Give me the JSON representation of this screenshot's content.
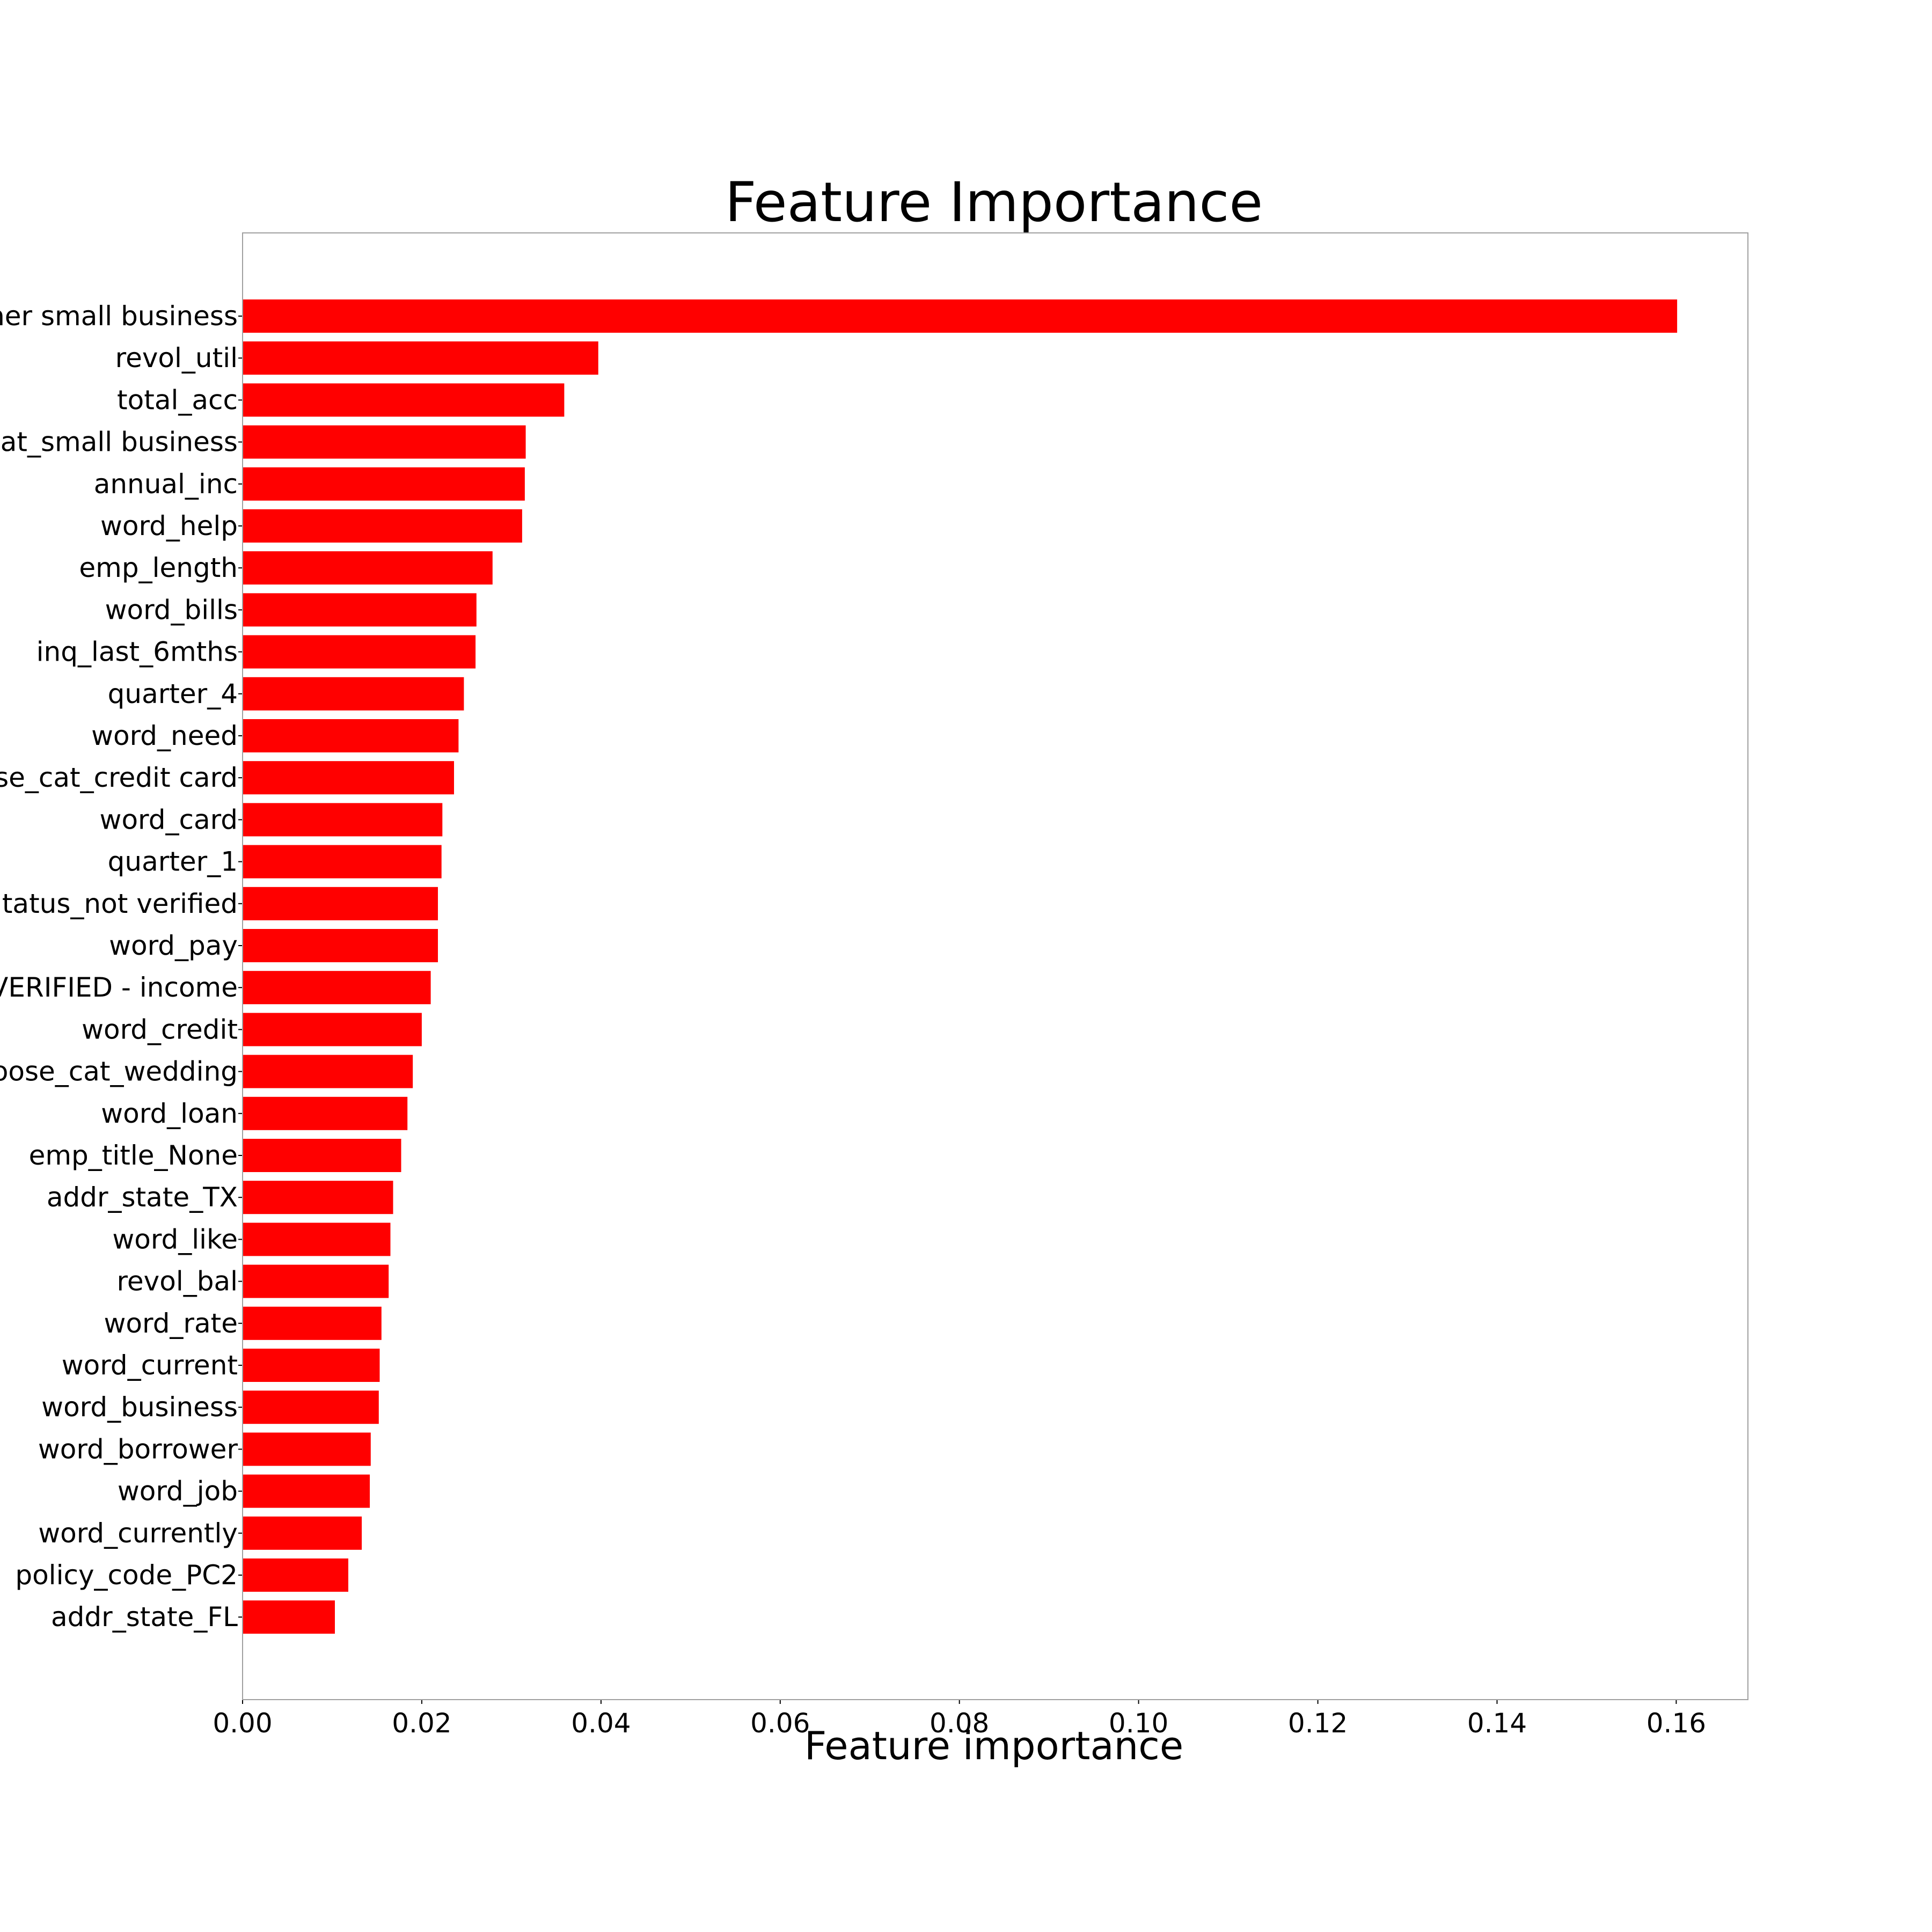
{
  "chart_data": {
    "type": "bar",
    "orientation": "horizontal",
    "title": "Feature Importance",
    "xlabel": "Feature importance",
    "ylabel": "",
    "xlim": [
      0,
      0.168
    ],
    "xticks": [
      "0.00",
      "0.02",
      "0.04",
      "0.06",
      "0.08",
      "0.10",
      "0.12",
      "0.14",
      "0.16"
    ],
    "grid": false,
    "bar_color": "#ff0000",
    "categories": [
      "ner small business",
      "revol_util",
      "total_acc",
      "at_small business",
      "annual_inc",
      "word_help",
      "emp_length",
      "word_bills",
      "inq_last_6mths",
      "quarter_4",
      "word_need",
      "se_cat_credit card",
      "word_card",
      "quarter_1",
      "tatus_not verified",
      "word_pay",
      "VERIFIED - income",
      "word_credit",
      "oose_cat_wedding",
      "word_loan",
      "emp_title_None",
      "addr_state_TX",
      "word_like",
      "revol_bal",
      "word_rate",
      "word_current",
      "word_business",
      "word_borrower",
      "word_job",
      "word_currently",
      "policy_code_PC2",
      "addr_state_FL"
    ],
    "values": [
      0.1601,
      0.0397,
      0.0359,
      0.0316,
      0.0315,
      0.0312,
      0.0279,
      0.0261,
      0.026,
      0.0247,
      0.0241,
      0.0236,
      0.0223,
      0.0222,
      0.0218,
      0.0218,
      0.021,
      0.02,
      0.019,
      0.0184,
      0.0177,
      0.0168,
      0.0165,
      0.0163,
      0.0155,
      0.0153,
      0.0152,
      0.0143,
      0.0142,
      0.0133,
      0.0118,
      0.0103
    ]
  }
}
